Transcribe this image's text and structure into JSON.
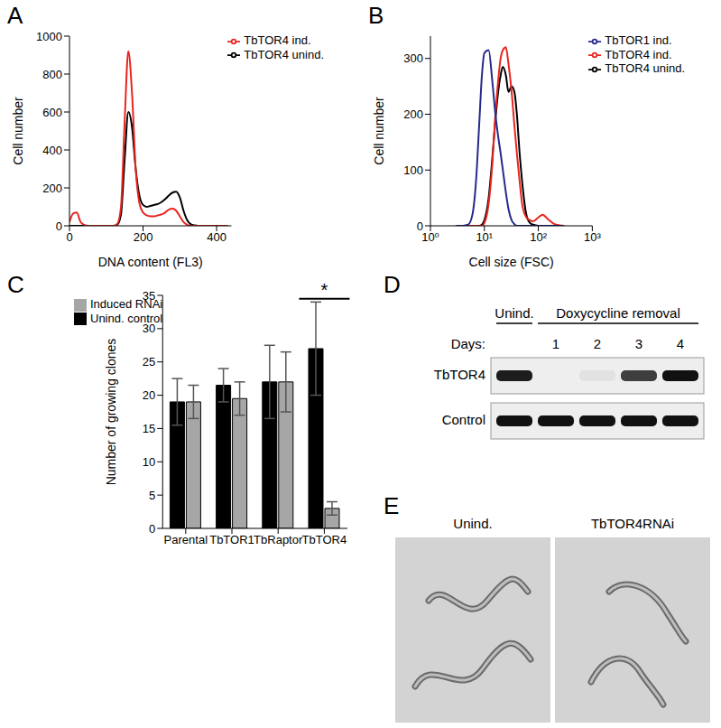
{
  "chart_data": [
    {
      "type": "line",
      "title": "A",
      "x_label": "DNA content (FL3)",
      "y_label": "Cell number",
      "x": [
        0,
        10,
        20,
        30,
        40,
        50,
        60,
        70,
        80,
        90,
        100,
        110,
        120,
        130,
        140,
        150,
        160,
        170,
        180,
        190,
        200,
        210,
        220,
        230,
        240,
        250,
        260,
        270,
        280,
        290,
        300,
        310,
        320,
        330,
        340,
        350,
        360,
        370,
        380,
        390,
        400,
        410,
        420,
        430
      ],
      "series": [
        {
          "name": "TbTOR4 unind.",
          "color": "#000000",
          "values": [
            0,
            0,
            0,
            0,
            0,
            0,
            0,
            0,
            0,
            0,
            0,
            0,
            0,
            5,
            60,
            350,
            600,
            520,
            300,
            160,
            110,
            100,
            105,
            110,
            115,
            125,
            140,
            160,
            175,
            180,
            150,
            80,
            30,
            8,
            2,
            0,
            0,
            0,
            0,
            0,
            0,
            0,
            0,
            0
          ]
        },
        {
          "name": "TbTOR4 ind.",
          "color": "#e8251f",
          "values": [
            20,
            65,
            70,
            20,
            5,
            0,
            0,
            0,
            0,
            0,
            0,
            0,
            0,
            10,
            100,
            550,
            920,
            700,
            300,
            120,
            70,
            55,
            50,
            50,
            55,
            60,
            70,
            85,
            90,
            80,
            50,
            20,
            5,
            0,
            0,
            0,
            0,
            0,
            0,
            0,
            0,
            0,
            0,
            0
          ]
        }
      ],
      "xlim": [
        0,
        440
      ],
      "xticks": [
        0,
        200,
        400
      ],
      "ylim": [
        0,
        1000
      ],
      "yticks": [
        0,
        200,
        400,
        600,
        800,
        1000
      ],
      "legend": "upper right"
    },
    {
      "type": "line",
      "title": "B",
      "x_label": "Cell size (FSC)",
      "y_label": "Cell number",
      "x": [
        3,
        4,
        5,
        6,
        7,
        8,
        9,
        10,
        12,
        14,
        16,
        18,
        20,
        22,
        25,
        28,
        32,
        36,
        40,
        45,
        50,
        60,
        70,
        80,
        100,
        120,
        150,
        200,
        300
      ],
      "series": [
        {
          "name": "TbTOR4 unind.",
          "color": "#000000",
          "values": [
            0,
            0,
            0,
            0,
            0,
            0,
            2,
            10,
            50,
            120,
            190,
            240,
            270,
            285,
            270,
            240,
            250,
            240,
            200,
            130,
            80,
            20,
            5,
            2,
            0,
            0,
            0,
            0,
            0
          ]
        },
        {
          "name": "TbTOR4 ind.",
          "color": "#e8251f",
          "values": [
            0,
            0,
            0,
            0,
            0,
            0,
            0,
            5,
            40,
            110,
            200,
            260,
            300,
            315,
            320,
            290,
            240,
            180,
            130,
            80,
            40,
            15,
            10,
            8,
            15,
            20,
            12,
            3,
            0
          ]
        },
        {
          "name": "TbTOR1 ind.",
          "color": "#262a8c",
          "values": [
            0,
            0,
            2,
            20,
            80,
            180,
            270,
            310,
            315,
            260,
            200,
            160,
            130,
            100,
            60,
            30,
            10,
            3,
            0,
            0,
            0,
            0,
            0,
            0,
            0,
            0,
            0,
            0,
            0
          ]
        }
      ],
      "xlim": [
        1,
        1000
      ],
      "xticks": [
        {
          "value": 1,
          "label": "10⁰"
        },
        {
          "value": 10,
          "label": "10¹"
        },
        {
          "value": 100,
          "label": "10²"
        },
        {
          "value": 1000,
          "label": "10³"
        }
      ],
      "ylim": [
        0,
        340
      ],
      "yticks": [
        0,
        100,
        200,
        300
      ],
      "log": "x",
      "legend": "upper right"
    },
    {
      "type": "bar",
      "title": "C",
      "y_label": "Number of growing clones",
      "categories": [
        "Parental",
        "TbTOR1",
        "TbRaptor",
        "TbTOR4"
      ],
      "series": [
        {
          "name": "Unind. control",
          "color": "#000000",
          "values": [
            19,
            21.5,
            22,
            27
          ],
          "errors": [
            3.5,
            2.5,
            5.5,
            7
          ]
        },
        {
          "name": "Induced RNAi",
          "color": "#a6a6a6",
          "values": [
            19,
            19.5,
            22,
            3
          ],
          "errors": [
            2.5,
            2.5,
            4.5,
            1
          ]
        }
      ],
      "ylim": [
        0,
        35
      ],
      "yticks": [
        0,
        5,
        10,
        15,
        20,
        25,
        30,
        35
      ],
      "legend": "upper left",
      "annotations": [
        {
          "text": "*",
          "category": "TbTOR4",
          "y": 34.5
        }
      ]
    }
  ],
  "blot": {
    "title": "D",
    "groups": [
      {
        "label": "Unind.",
        "lanes": 1
      },
      {
        "label": "Doxycycline removal",
        "lanes": 4
      }
    ],
    "days_label": "Days:",
    "days": [
      null,
      1,
      2,
      3,
      4
    ],
    "rows": [
      {
        "label": "TbTOR4",
        "intensity": [
          0.95,
          0,
          0.05,
          0.8,
          1
        ]
      },
      {
        "label": "Control",
        "intensity": [
          1,
          1,
          1,
          1,
          1
        ]
      }
    ]
  },
  "micrographs": {
    "title": "E",
    "panels": [
      "Unind.",
      "TbTOR4RNAi"
    ]
  }
}
